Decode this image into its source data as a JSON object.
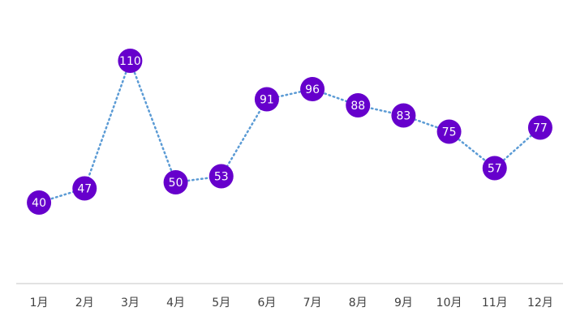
{
  "chart_data": {
    "type": "line",
    "categories": [
      "1月",
      "2月",
      "3月",
      "4月",
      "5月",
      "6月",
      "7月",
      "8月",
      "9月",
      "10月",
      "11月",
      "12月"
    ],
    "values": [
      40,
      47,
      110,
      50,
      53,
      91,
      96,
      88,
      83,
      75,
      57,
      77
    ],
    "color": "#5b9bd5",
    "marker_color": "#6600cc",
    "ylim": [
      0,
      120
    ],
    "grid": false
  }
}
